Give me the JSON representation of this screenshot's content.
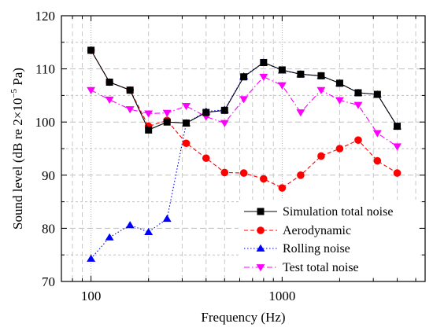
{
  "chart_data": {
    "type": "line",
    "title": "",
    "xlabel": "Frequency (Hz)",
    "ylabel_parts": [
      "Sound level (dB re 2×10",
      "−5",
      " Pa)"
    ],
    "xscale": "log",
    "xlim": [
      70,
      5600
    ],
    "ylim": [
      70,
      120
    ],
    "xticks": [
      100,
      1000
    ],
    "xtick_labels": [
      "100",
      "1000"
    ],
    "yticks": [
      70,
      80,
      90,
      100,
      110,
      120
    ],
    "ytick_labels": [
      "70",
      "80",
      "90",
      "100",
      "110",
      "120"
    ],
    "grid": true,
    "legend_position": "bottom-right",
    "x": [
      100,
      125,
      160,
      200,
      250,
      315,
      400,
      500,
      630,
      800,
      1000,
      1250,
      1600,
      2000,
      2500,
      3150,
      4000
    ],
    "series": [
      {
        "name": "Simulation total noise",
        "color": "#000000",
        "marker": "square",
        "line_style": "solid",
        "values": [
          113.5,
          107.5,
          106,
          98.5,
          100,
          99.8,
          101.8,
          102.2,
          108.5,
          111.2,
          109.8,
          109,
          108.7,
          107.3,
          105.5,
          105.2,
          99.2
        ]
      },
      {
        "name": "Aerodynamic",
        "color": "#ff0000",
        "marker": "circle",
        "line_style": "dashed",
        "values": [
          113.5,
          107.5,
          106,
          99.2,
          100.3,
          96,
          93.2,
          90.5,
          90.4,
          89.3,
          87.6,
          90,
          93.6,
          95,
          96.6,
          92.7,
          90.4
        ]
      },
      {
        "name": "Rolling noise",
        "color": "#0000ff",
        "marker": "triangle-up",
        "line_style": "dotted",
        "values": [
          74.3,
          78.3,
          80.6,
          79.3,
          81.8,
          99.8,
          102,
          102.3,
          108.6,
          111.2,
          109.7,
          109,
          108.7,
          107.3,
          105.5,
          105.2,
          99.2
        ]
      },
      {
        "name": "Test total noise",
        "color": "#ff00ff",
        "marker": "triangle-down",
        "line_style": "dash-dot",
        "values": [
          106,
          104.2,
          102.4,
          101.6,
          101.7,
          103,
          101,
          99.8,
          104.3,
          108.5,
          106.9,
          101.8,
          106,
          104.1,
          103.2,
          97.9,
          95.4
        ]
      }
    ]
  }
}
